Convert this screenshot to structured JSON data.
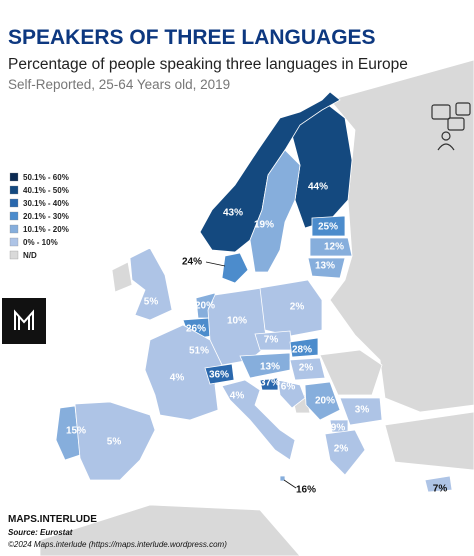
{
  "header": {
    "title": "SPEAKERS OF THREE LANGUAGES",
    "subtitle": "Percentage of people speaking three languages in Europe",
    "note": "Self-Reported, 25-64 Years old, 2019"
  },
  "legend": [
    {
      "label": "50.1% - 60%",
      "color": "#0b2a52"
    },
    {
      "label": "40.1% - 50%",
      "color": "#14497f"
    },
    {
      "label": "30.1% - 40%",
      "color": "#2a68ad"
    },
    {
      "label": "20.1% - 30%",
      "color": "#4c8ccc"
    },
    {
      "label": "10.1% - 20%",
      "color": "#86aedc"
    },
    {
      "label": "0% - 10%",
      "color": "#aec4e6"
    },
    {
      "label": "N/D",
      "color": "#d9d9d9"
    }
  ],
  "map": {
    "regions": [
      {
        "value": 44,
        "label": "44%",
        "color": "#14497f"
      },
      {
        "value": 43,
        "label": "43%",
        "color": "#14497f"
      },
      {
        "value": 19,
        "label": "19%",
        "color": "#86aedc"
      },
      {
        "value": 24,
        "label": "24%",
        "color": "#4c8ccc"
      },
      {
        "value": 25,
        "label": "25%",
        "color": "#4c8ccc"
      },
      {
        "value": 12,
        "label": "12%",
        "color": "#86aedc"
      },
      {
        "value": 13,
        "label": "13%",
        "color": "#86aedc"
      },
      {
        "value": 5,
        "label": "5%",
        "color": "#aec4e6"
      },
      {
        "value": 20,
        "label": "20%",
        "color": "#86aedc"
      },
      {
        "value": 26,
        "label": "26%",
        "color": "#4c8ccc"
      },
      {
        "value": 51,
        "label": "51%",
        "color": "#0b2a52"
      },
      {
        "value": 10,
        "label": "10%",
        "color": "#aec4e6"
      },
      {
        "value": 2,
        "label": "2%",
        "color": "#aec4e6"
      },
      {
        "value": 7,
        "label": "7%",
        "color": "#aec4e6"
      },
      {
        "value": 28,
        "label": "28%",
        "color": "#4c8ccc"
      },
      {
        "value": 4,
        "label": "4%",
        "color": "#aec4e6"
      },
      {
        "value": 36,
        "label": "36%",
        "color": "#2a68ad"
      },
      {
        "value": 13,
        "label": "13%",
        "color": "#86aedc"
      },
      {
        "value": 2,
        "label": "2%",
        "color": "#aec4e6"
      },
      {
        "value": 37,
        "label": "37%",
        "color": "#2a68ad"
      },
      {
        "value": 6,
        "label": "6%",
        "color": "#aec4e6"
      },
      {
        "value": 4,
        "label": "4%",
        "color": "#aec4e6"
      },
      {
        "value": 20,
        "label": "20%",
        "color": "#86aedc"
      },
      {
        "value": 3,
        "label": "3%",
        "color": "#aec4e6"
      },
      {
        "value": 15,
        "label": "15%",
        "color": "#86aedc"
      },
      {
        "value": 5,
        "label": "5%",
        "color": "#aec4e6"
      },
      {
        "value": 9,
        "label": "9%",
        "color": "#aec4e6"
      },
      {
        "value": 2,
        "label": "2%",
        "color": "#aec4e6"
      },
      {
        "value": 16,
        "label": "16%",
        "color": "#86aedc"
      },
      {
        "value": 7,
        "label": "7%",
        "color": "#aec4e6"
      }
    ]
  },
  "footer": {
    "brand": "MAPS.INTERLUDE",
    "source": "Source: Eurostat",
    "credit": "©2024 Maps.interlude (https://maps.interlude.wordpress.com)"
  }
}
